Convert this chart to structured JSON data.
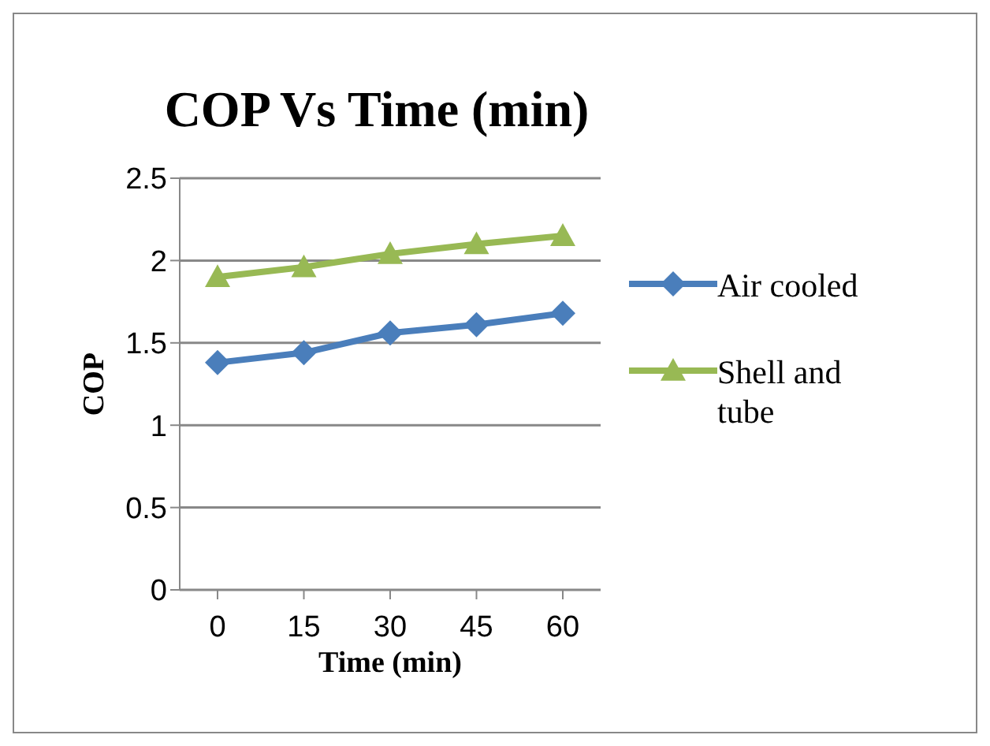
{
  "chart_data": {
    "type": "line",
    "title": "COP Vs Time (min)",
    "xlabel": "Time (min)",
    "ylabel": "COP",
    "categories": [
      "0",
      "15",
      "30",
      "45",
      "60"
    ],
    "series": [
      {
        "name": "Air cooled",
        "color": "#4a7ebb",
        "marker": "diamond",
        "values": [
          1.38,
          1.44,
          1.56,
          1.61,
          1.68
        ]
      },
      {
        "name": "Shell and tube",
        "color": "#98b954",
        "marker": "triangle",
        "values": [
          1.9,
          1.96,
          2.04,
          2.1,
          2.15
        ]
      }
    ],
    "ylim": [
      0,
      2.5
    ],
    "yticks": [
      0,
      0.5,
      1,
      1.5,
      2,
      2.5
    ],
    "grid": "y",
    "legend": "right"
  }
}
